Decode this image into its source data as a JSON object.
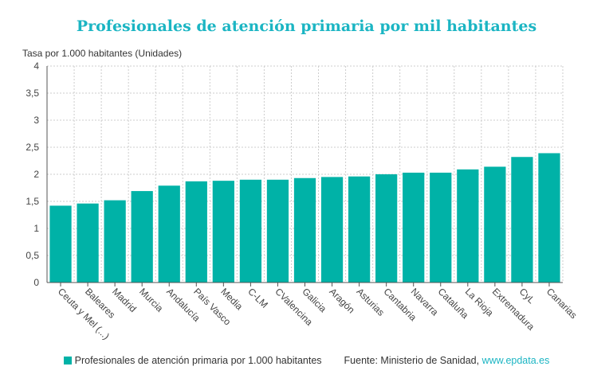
{
  "colors": {
    "bar": "#00b2a7",
    "title": "#1bb5c3",
    "grid": "#cccccc",
    "link": "#1bb5c3"
  },
  "chart_data": {
    "type": "bar",
    "title": "Profesionales de atención primaria por mil habitantes",
    "ylabel": "Tasa por 1.000 habitantes (Unidades)",
    "xlabel": "",
    "ylim": [
      0,
      4
    ],
    "yticks": [
      "0",
      "0,5",
      "1",
      "1,5",
      "2",
      "2,5",
      "3",
      "3,5",
      "4"
    ],
    "grid": true,
    "legend_position": "bottom",
    "categories": [
      "Ceuta y Mel (...)",
      "Baleares",
      "Madrid",
      "Murcia",
      "Andalucía",
      "País Vasco",
      "Media",
      "C-LM",
      "CValencina",
      "Galicia",
      "Aragón",
      "Asturias",
      "Cantabria",
      "Navarra",
      "Cataluña",
      "La Rioja",
      "Extremadura",
      "CyL",
      "Canarias"
    ],
    "series": [
      {
        "name": "Profesionales de atención primaria por 1.000 habitantes",
        "values": [
          1.42,
          1.46,
          1.52,
          1.69,
          1.79,
          1.87,
          1.88,
          1.9,
          1.9,
          1.93,
          1.95,
          1.96,
          2.0,
          2.03,
          2.03,
          2.09,
          2.14,
          2.32,
          2.39
        ]
      }
    ]
  },
  "footer": {
    "legend_label": "Profesionales de atención primaria por 1.000 habitantes",
    "source_prefix": "Fuente: Ministerio de Sanidad, ",
    "source_link": "www.epdata.es"
  }
}
